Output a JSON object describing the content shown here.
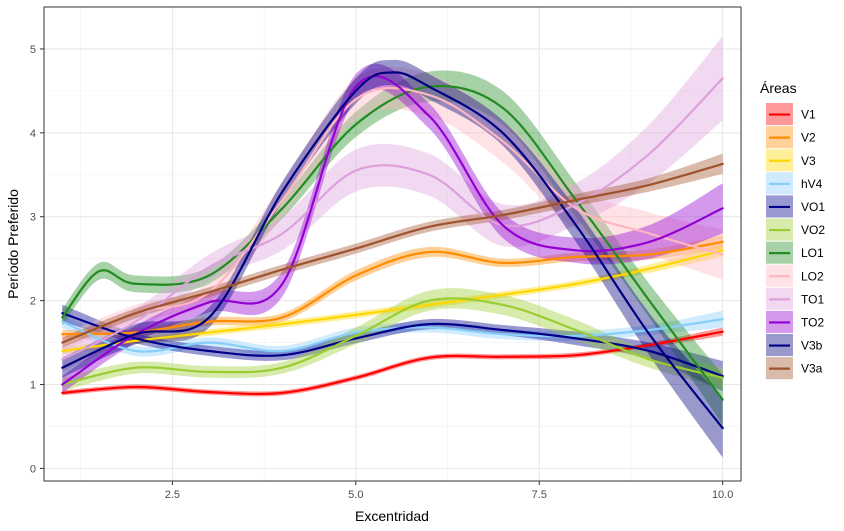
{
  "chart_data": {
    "type": "line",
    "xlabel": "Excentridad",
    "ylabel": "Período Preferido",
    "xlim": [
      0.75,
      10.25
    ],
    "ylim": [
      -0.15,
      5.5
    ],
    "xticks": [
      2.5,
      5.0,
      7.5,
      10.0
    ],
    "xtick_labels": [
      "2.5",
      "5.0",
      "7.5",
      "10.0"
    ],
    "yticks": [
      0,
      1,
      2,
      3,
      4,
      5
    ],
    "ytick_labels": [
      "0",
      "1",
      "2",
      "3",
      "4",
      "5"
    ],
    "grid": true,
    "legend": {
      "title": "Áreas",
      "position": "right"
    },
    "series": [
      {
        "name": "V1",
        "color": "#ff0000",
        "x": [
          1,
          2,
          3,
          4,
          5,
          6,
          7,
          8,
          9,
          10
        ],
        "y": [
          0.9,
          0.97,
          0.91,
          0.9,
          1.08,
          1.32,
          1.33,
          1.35,
          1.47,
          1.63
        ],
        "band": [
          0.03,
          0.03,
          0.03,
          0.03,
          0.03,
          0.03,
          0.03,
          0.03,
          0.03,
          0.05
        ]
      },
      {
        "name": "V2",
        "color": "#ff8c00",
        "x": [
          1,
          2,
          3,
          4,
          5,
          6,
          7,
          8,
          9,
          10
        ],
        "y": [
          1.6,
          1.62,
          1.75,
          1.8,
          2.3,
          2.58,
          2.45,
          2.52,
          2.55,
          2.7
        ],
        "band": [
          0.05,
          0.05,
          0.05,
          0.05,
          0.06,
          0.06,
          0.05,
          0.05,
          0.06,
          0.08
        ]
      },
      {
        "name": "V3",
        "color": "#ffd700",
        "x": [
          1,
          2,
          3,
          4,
          5,
          6,
          7,
          8,
          9,
          10
        ],
        "y": [
          1.4,
          1.52,
          1.62,
          1.72,
          1.83,
          1.95,
          2.07,
          2.2,
          2.38,
          2.6
        ],
        "band": [
          0.04,
          0.04,
          0.04,
          0.04,
          0.04,
          0.04,
          0.04,
          0.04,
          0.05,
          0.07
        ]
      },
      {
        "name": "hV4",
        "color": "#87cefa",
        "x": [
          1,
          2,
          3,
          4,
          5,
          6,
          7,
          8,
          9,
          10
        ],
        "y": [
          1.75,
          1.4,
          1.5,
          1.4,
          1.62,
          1.68,
          1.6,
          1.58,
          1.65,
          1.78
        ],
        "band": [
          0.08,
          0.06,
          0.06,
          0.06,
          0.06,
          0.06,
          0.06,
          0.06,
          0.06,
          0.1
        ]
      },
      {
        "name": "VO1",
        "color": "#00008b",
        "x": [
          1,
          2,
          3,
          4,
          5,
          6,
          7,
          8,
          9,
          10
        ],
        "y": [
          1.85,
          1.55,
          1.4,
          1.35,
          1.55,
          1.72,
          1.65,
          1.55,
          1.4,
          1.1
        ],
        "band": [
          0.1,
          0.06,
          0.06,
          0.06,
          0.06,
          0.06,
          0.06,
          0.08,
          0.1,
          0.18
        ]
      },
      {
        "name": "VO2",
        "color": "#9acd32",
        "x": [
          1,
          2,
          3,
          4,
          5,
          6,
          7,
          8,
          9,
          10
        ],
        "y": [
          1.0,
          1.2,
          1.15,
          1.2,
          1.58,
          2.0,
          1.95,
          1.65,
          1.3,
          1.08
        ],
        "band": [
          0.08,
          0.07,
          0.07,
          0.07,
          0.1,
          0.12,
          0.12,
          0.12,
          0.1,
          0.12
        ]
      },
      {
        "name": "LO1",
        "color": "#228b22",
        "x": [
          1,
          1.5,
          2,
          3,
          4,
          5,
          6,
          7,
          8,
          9,
          10
        ],
        "y": [
          1.8,
          2.35,
          2.2,
          2.3,
          3.1,
          4.1,
          4.55,
          4.3,
          3.2,
          2.0,
          0.82
        ],
        "band": [
          0.1,
          0.1,
          0.1,
          0.1,
          0.12,
          0.15,
          0.18,
          0.2,
          0.2,
          0.2,
          0.3
        ]
      },
      {
        "name": "LO2",
        "color": "#ffb6c1",
        "x": [
          1,
          2,
          3,
          4,
          5,
          6,
          7,
          8,
          9,
          10
        ],
        "y": [
          1.5,
          1.85,
          2.1,
          3.2,
          4.4,
          4.45,
          3.9,
          3.1,
          2.8,
          2.55
        ],
        "band": [
          0.1,
          0.1,
          0.12,
          0.2,
          0.25,
          0.25,
          0.25,
          0.25,
          0.25,
          0.3
        ]
      },
      {
        "name": "TO1",
        "color": "#dda0dd",
        "x": [
          1,
          2,
          3,
          4,
          5,
          6,
          7,
          8,
          9,
          10
        ],
        "y": [
          1.3,
          1.75,
          2.4,
          2.8,
          3.55,
          3.5,
          2.9,
          3.15,
          3.75,
          4.65
        ],
        "band": [
          0.15,
          0.15,
          0.15,
          0.2,
          0.25,
          0.25,
          0.25,
          0.25,
          0.35,
          0.5
        ]
      },
      {
        "name": "TO2",
        "color": "#9400d3",
        "x": [
          1,
          2,
          3,
          4,
          5,
          6,
          7,
          8,
          9,
          10
        ],
        "y": [
          1.0,
          1.6,
          1.98,
          2.2,
          4.55,
          4.2,
          2.9,
          2.6,
          2.7,
          3.1
        ],
        "band": [
          0.1,
          0.1,
          0.12,
          0.15,
          0.15,
          0.15,
          0.15,
          0.15,
          0.2,
          0.3
        ]
      },
      {
        "name": "V3b",
        "color": "#000080",
        "x": [
          1,
          2,
          3,
          4,
          5,
          5.5,
          6,
          7,
          8,
          9,
          10
        ],
        "y": [
          1.2,
          1.6,
          1.8,
          3.3,
          4.5,
          4.72,
          4.55,
          4.0,
          2.9,
          1.6,
          0.48
        ],
        "band": [
          0.12,
          0.12,
          0.12,
          0.12,
          0.15,
          0.15,
          0.15,
          0.15,
          0.2,
          0.25,
          0.35
        ]
      },
      {
        "name": "V3a",
        "color": "#a0522d",
        "x": [
          1,
          2,
          3,
          4,
          5,
          6,
          7,
          8,
          9,
          10
        ],
        "y": [
          1.5,
          1.85,
          2.1,
          2.37,
          2.62,
          2.88,
          3.02,
          3.2,
          3.38,
          3.63
        ],
        "band": [
          0.06,
          0.06,
          0.06,
          0.06,
          0.06,
          0.06,
          0.06,
          0.07,
          0.08,
          0.12
        ]
      }
    ]
  }
}
